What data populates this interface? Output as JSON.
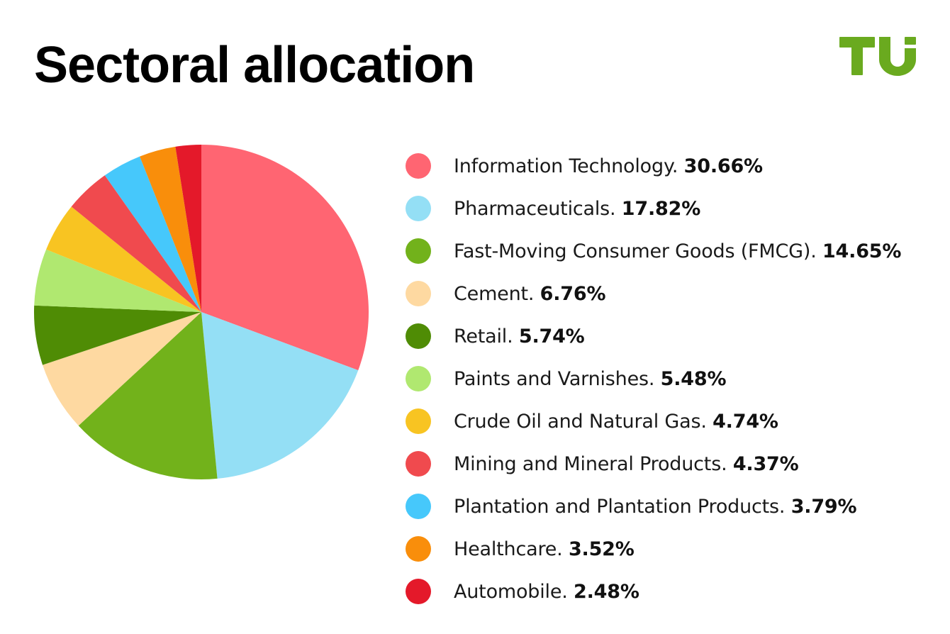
{
  "header": {
    "title": "Sectoral allocation",
    "logo_text": "TU",
    "logo_color": "#6aaa1f"
  },
  "chart_data": {
    "type": "pie",
    "title": "Sectoral allocation",
    "legend_position": "right",
    "slices": [
      {
        "label": "Information Technology",
        "value": 30.66,
        "value_label": "30.66%",
        "color": "#ff6572"
      },
      {
        "label": "Pharmaceuticals",
        "value": 17.82,
        "value_label": "17.82%",
        "color": "#94dff5"
      },
      {
        "label": "Fast-Moving Consumer Goods (FMCG)",
        "value": 14.65,
        "value_label": "14.65%",
        "color": "#72b21b"
      },
      {
        "label": "Cement",
        "value": 6.76,
        "value_label": "6.76%",
        "color": "#fed9a1"
      },
      {
        "label": "Retail",
        "value": 5.74,
        "value_label": "5.74%",
        "color": "#4f8c05"
      },
      {
        "label": "Paints and Varnishes",
        "value": 5.48,
        "value_label": "5.48%",
        "color": "#b0e870"
      },
      {
        "label": "Crude Oil and Natural Gas",
        "value": 4.74,
        "value_label": "4.74%",
        "color": "#f8c422"
      },
      {
        "label": "Mining and Mineral Products",
        "value": 4.37,
        "value_label": "4.37%",
        "color": "#f04a4e"
      },
      {
        "label": "Plantation and Plantation Products",
        "value": 3.79,
        "value_label": "3.79%",
        "color": "#46c8fb"
      },
      {
        "label": "Healthcare",
        "value": 3.52,
        "value_label": "3.52%",
        "color": "#f98e0b"
      },
      {
        "label": "Automobile",
        "value": 2.48,
        "value_label": "2.48%",
        "color": "#e4192a"
      }
    ]
  }
}
